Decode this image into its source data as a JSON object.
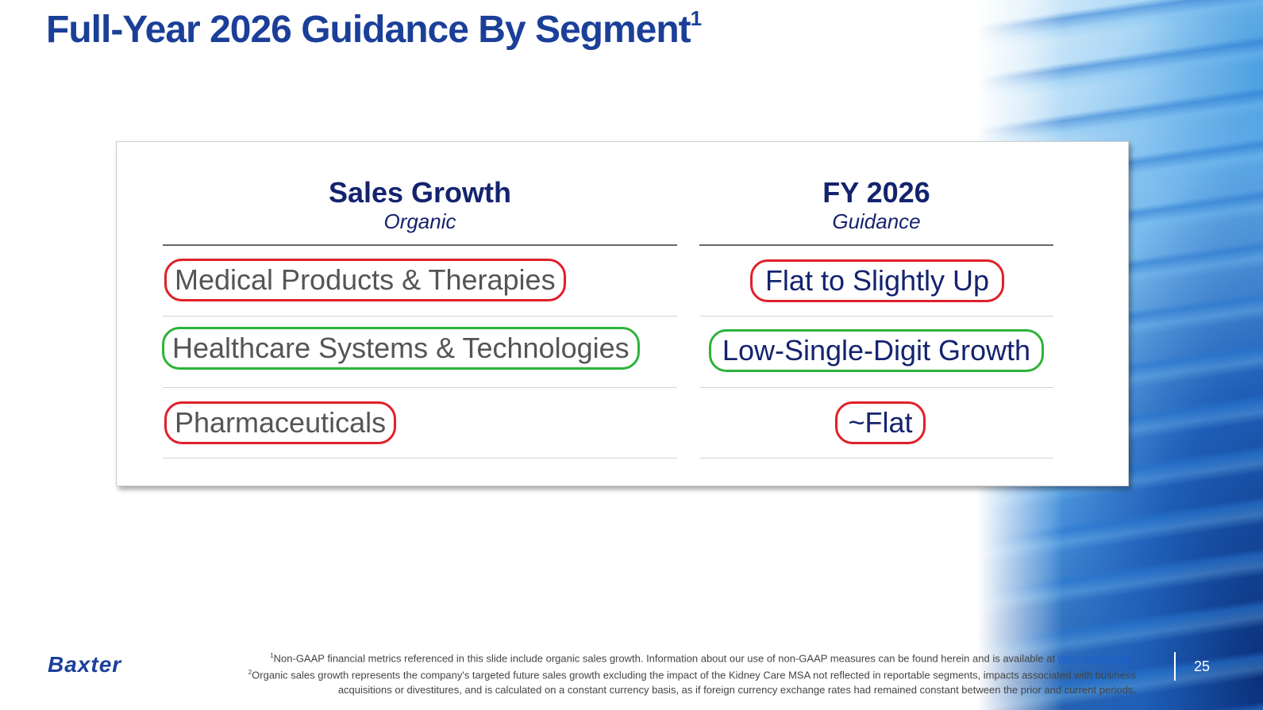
{
  "slide": {
    "title": "Full-Year 2026 Guidance By Segment",
    "title_sup": "1",
    "page_number": "25"
  },
  "table": {
    "col1_header": "Sales Growth",
    "col1_subheader": "Organic",
    "col2_header": "FY 2026",
    "col2_subheader": "Guidance",
    "rows": [
      {
        "segment": "Medical Products & Therapies",
        "guidance": "Flat to Slightly Up",
        "highlight": "red"
      },
      {
        "segment": "Healthcare Systems & Technologies",
        "guidance": "Low-Single-Digit Growth",
        "highlight": "green"
      },
      {
        "segment": "Pharmaceuticals",
        "guidance": "~Flat",
        "highlight": "red"
      }
    ]
  },
  "colors": {
    "title": "#1b3f99",
    "header_text": "#14236e",
    "highlight_red": "#e0202a",
    "highlight_green": "#2db33a"
  },
  "footer": {
    "logo": "Baxter",
    "note1_sup": "1",
    "note1": "Non-GAAP financial metrics referenced in this slide include organic sales growth. Information about our use of non-GAAP measures can be found herein and is available at ",
    "note1_link": "www.baxter.com",
    "note1_end": ".",
    "note2_sup": "2",
    "note2": "Organic sales growth represents the company's targeted future sales growth excluding the impact of the Kidney Care MSA not reflected in reportable segments, impacts associated with business acquisitions or divestitures, and is calculated on a constant currency basis, as if foreign currency exchange rates had remained constant between the prior and current periods."
  }
}
